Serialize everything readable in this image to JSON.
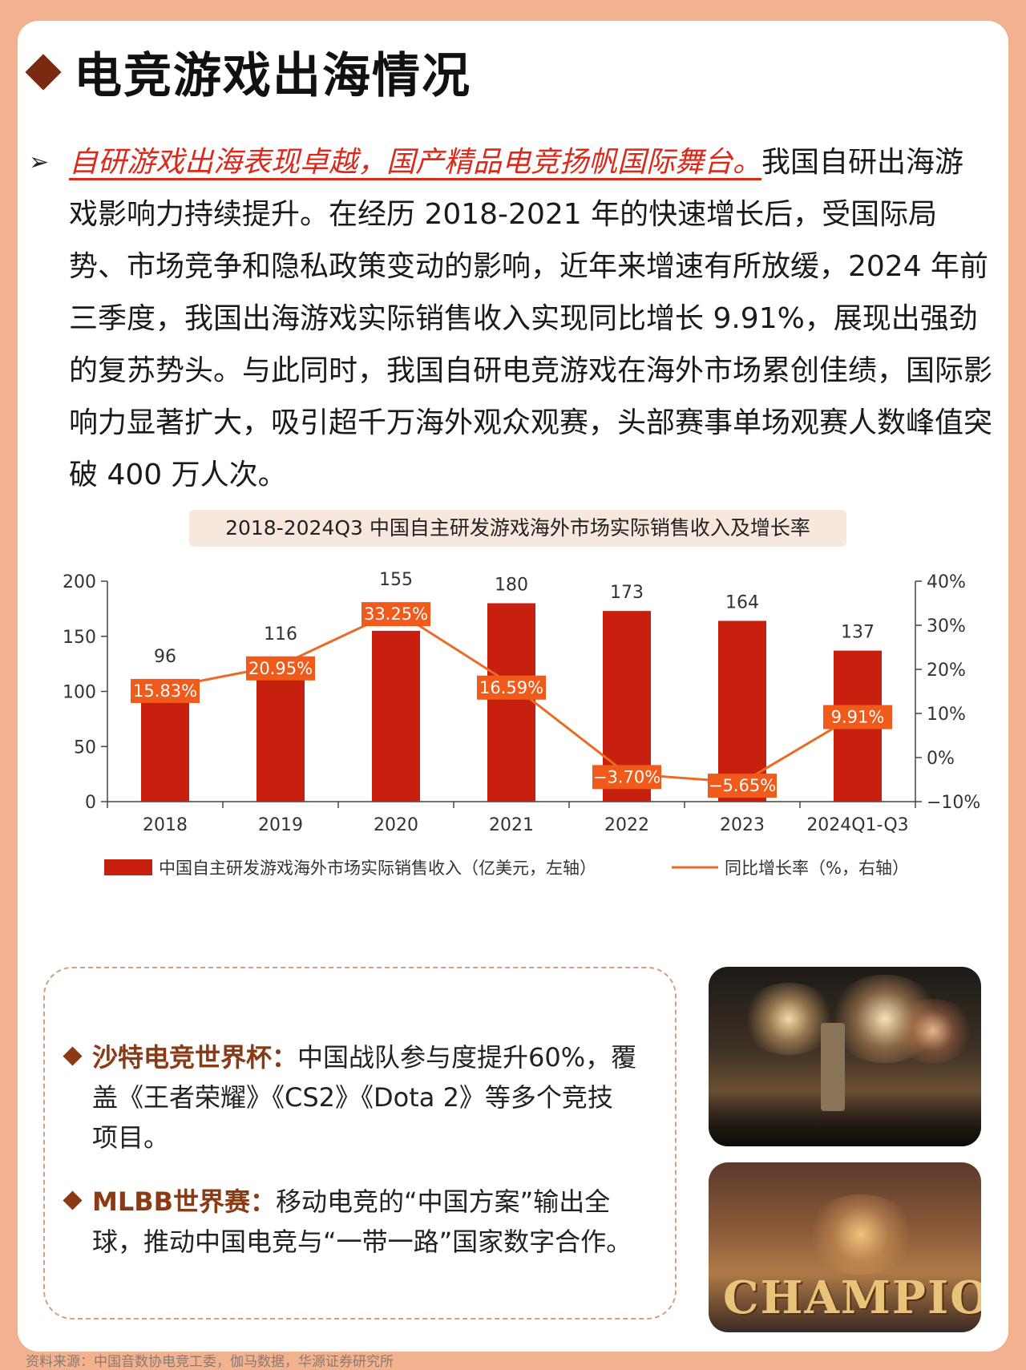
{
  "header": {
    "title": "电竞游戏出海情况"
  },
  "intro": {
    "arrow": "➢",
    "highlight": "自研游戏出海表现卓越，国产精品电竞扬帆国际舞台。",
    "body": "我国自研出海游戏影响力持续提升。在经历 2018-2021 年的快速增长后，受国际局势、市场竞争和隐私政策变动的影响，近年来增速有所放缓，2024 年前三季度，我国出海游戏实际销售收入实现同比增长 9.91%，展现出强劲的复苏势头。与此同时，我国自研电竞游戏在海外市场累创佳绩，国际影响力显著扩大，吸引超千万海外观众观赛，头部赛事单场观赛人数峰值突破 400 万人次。"
  },
  "chart_title": "2018-2024Q3 中国自主研发游戏海外市场实际销售收入及增长率",
  "chart_data": {
    "type": "bar",
    "categories": [
      "2018",
      "2019",
      "2020",
      "2021",
      "2022",
      "2023",
      "2024Q1-Q3"
    ],
    "series": [
      {
        "name": "中国自主研发游戏海外市场实际销售收入（亿美元，左轴）",
        "type": "bar",
        "axis": "left",
        "values": [
          96,
          116,
          155,
          180,
          173,
          164,
          137
        ],
        "labels": [
          "96",
          "116",
          "155",
          "180",
          "173",
          "164",
          "137"
        ]
      },
      {
        "name": "同比增长率（%，右轴）",
        "type": "line",
        "axis": "right",
        "values": [
          15.83,
          20.95,
          33.25,
          16.59,
          -3.7,
          -5.65,
          9.91
        ],
        "labels": [
          "15.83%",
          "20.95%",
          "33.25%",
          "16.59%",
          "−3.70%",
          "−5.65%",
          "9.91%"
        ]
      }
    ],
    "y_left": {
      "ylim": [
        0,
        200
      ],
      "ticks": [
        "0",
        "50",
        "100",
        "150",
        "200"
      ]
    },
    "y_right": {
      "ylim": [
        -10,
        40
      ],
      "ticks": [
        "−10%",
        "0%",
        "10%",
        "20%",
        "30%",
        "40%"
      ]
    },
    "legend_position": "bottom",
    "colors": {
      "bar": "#c8200e",
      "line": "#ea6b26",
      "label_box": "#f05a1a"
    }
  },
  "box": {
    "item1": {
      "title": "沙特电竞世界杯：",
      "line1": "中国战队参与度提升60%，覆",
      "line2": "盖《王者荣耀》《CS2》《Dota 2》等多个竞技",
      "line3": "项目。"
    },
    "item2": {
      "title": "MLBB世界赛：",
      "line1": "移动电竞的“中国方案”输出全",
      "line2": "球，推动中国电竞与“一带一路”国家数字合作。"
    }
  },
  "photos": {
    "champion_text": "CHAMPION"
  },
  "source": "资料来源：中国音数协电竞工委，伽马数据，华源证券研究所"
}
